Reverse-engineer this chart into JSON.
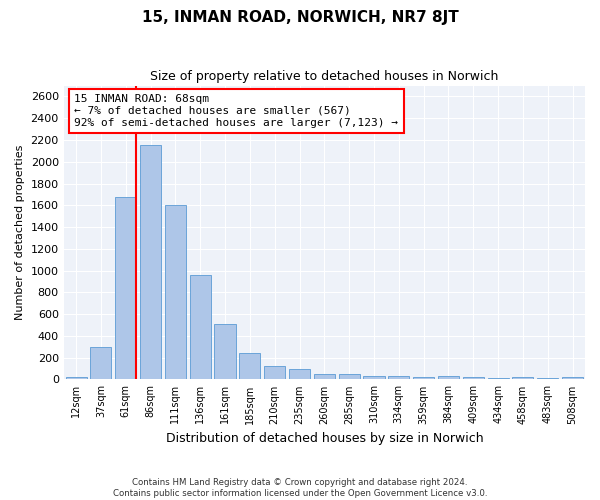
{
  "title": "15, INMAN ROAD, NORWICH, NR7 8JT",
  "subtitle": "Size of property relative to detached houses in Norwich",
  "xlabel": "Distribution of detached houses by size in Norwich",
  "ylabel": "Number of detached properties",
  "footer_line1": "Contains HM Land Registry data © Crown copyright and database right 2024.",
  "footer_line2": "Contains public sector information licensed under the Open Government Licence v3.0.",
  "annotation_title": "15 INMAN ROAD: 68sqm",
  "annotation_line1": "← 7% of detached houses are smaller (567)",
  "annotation_line2": "92% of semi-detached houses are larger (7,123) →",
  "bar_labels": [
    "12sqm",
    "37sqm",
    "61sqm",
    "86sqm",
    "111sqm",
    "136sqm",
    "161sqm",
    "185sqm",
    "210sqm",
    "235sqm",
    "260sqm",
    "285sqm",
    "310sqm",
    "334sqm",
    "359sqm",
    "384sqm",
    "409sqm",
    "434sqm",
    "458sqm",
    "483sqm",
    "508sqm"
  ],
  "bar_values": [
    25,
    300,
    1680,
    2150,
    1600,
    960,
    505,
    240,
    120,
    100,
    50,
    50,
    35,
    35,
    20,
    30,
    20,
    10,
    25,
    10,
    25
  ],
  "bar_color": "#aec6e8",
  "bar_edge_color": "#5b9bd5",
  "vline_color": "red",
  "annotation_box_color": "red",
  "background_color": "#eef2f9",
  "ylim": [
    0,
    2700
  ],
  "yticks": [
    0,
    200,
    400,
    600,
    800,
    1000,
    1200,
    1400,
    1600,
    1800,
    2000,
    2200,
    2400,
    2600
  ],
  "title_fontsize": 11,
  "subtitle_fontsize": 9,
  "ylabel_fontsize": 8,
  "xlabel_fontsize": 9,
  "tick_fontsize": 8,
  "xtick_fontsize": 7
}
